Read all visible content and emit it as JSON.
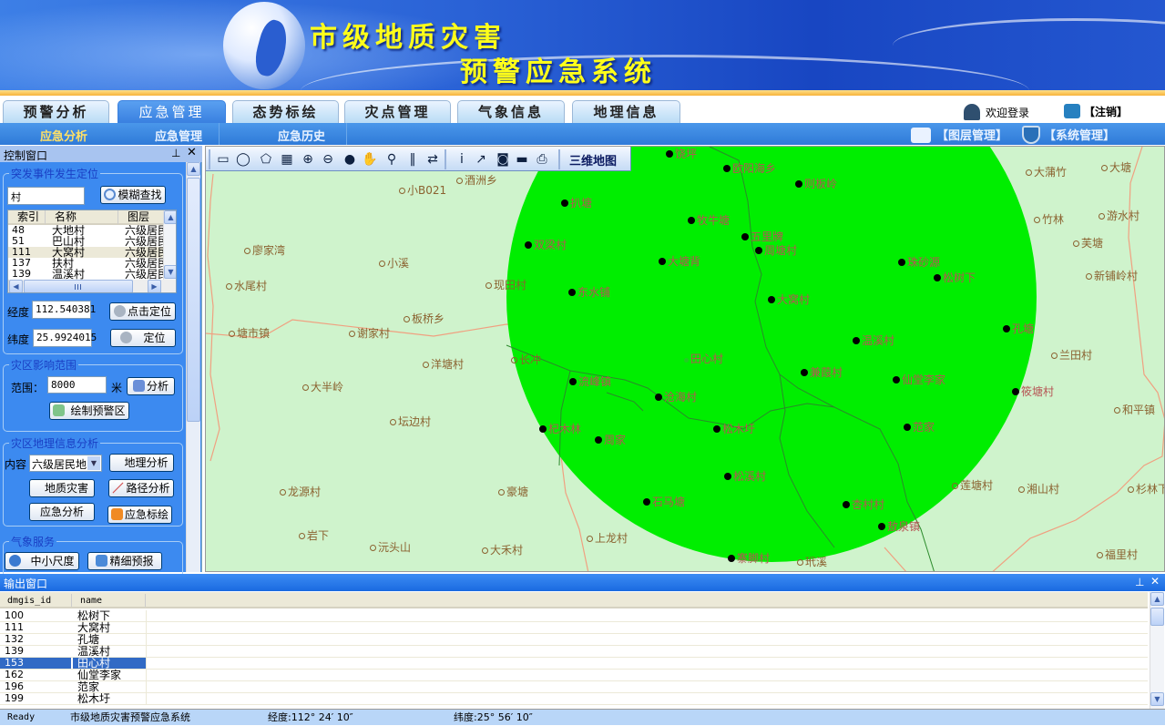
{
  "banner": {
    "title_line1": "市级地质灾害",
    "title_line2": "预警应急系统"
  },
  "tabs": [
    {
      "label": "预警分析",
      "active": false
    },
    {
      "label": "应急管理",
      "active": true
    },
    {
      "label": "态势标绘",
      "active": false
    },
    {
      "label": "灾点管理",
      "active": false
    },
    {
      "label": "气象信息",
      "active": false
    },
    {
      "label": "地理信息",
      "active": false
    }
  ],
  "subnav": [
    {
      "label": "应急分析",
      "active": true
    },
    {
      "label": "应急管理"
    },
    {
      "label": "应急历史"
    }
  ],
  "user": {
    "welcome": "欢迎登录",
    "logout": "【注销】",
    "layer_mgmt": "【图层管理】",
    "sys_mgmt": "【系统管理】"
  },
  "control": {
    "title": "控制窗口",
    "locate": {
      "legend": "突发事件发生定位",
      "search_value": "村",
      "search_btn": "模糊查找",
      "columns": [
        "索引",
        "名称",
        "图层"
      ],
      "rows": [
        [
          "48",
          "大地村",
          "六级居民地"
        ],
        [
          "51",
          "巴山村",
          "六级居民地"
        ],
        [
          "111",
          "大窝村",
          "六级居民地"
        ],
        [
          "137",
          "扶村",
          "六级居民地"
        ],
        [
          "139",
          "温溪村",
          "六级居民地"
        ]
      ],
      "selected_row": 2,
      "lon_label": "经度",
      "lon_value": "112.540381",
      "click_locate_btn": "点击定位",
      "lat_label": "纬度",
      "lat_value": "25.9924015",
      "locate_btn": "定位"
    },
    "impact": {
      "legend": "灾区影响范围",
      "range_label": "范围：",
      "range_value": "8000",
      "unit": "米",
      "analyze_btn": "分析",
      "draw_btn": "绘制预警区"
    },
    "geo": {
      "legend": "灾区地理信息分析",
      "content_label": "内容",
      "content_value": "六级居民地",
      "geo_btn": "地理分析",
      "hazard_btn": "地质灾害",
      "route_btn": "路径分析",
      "emergency_btn": "应急分析",
      "plot_btn": "应急标绘"
    },
    "weather": {
      "legend": "气象服务",
      "meso_btn": "中小尺度",
      "fine_btn": "精细预报"
    }
  },
  "map": {
    "toolbar_3d": "三维地图",
    "tools": [
      "ruler-icon",
      "measure-circle-icon",
      "measure-polygon-icon",
      "grid-icon",
      "zoom-in-icon",
      "zoom-out-icon",
      "globe-icon",
      "pan-hand-icon",
      "zoom-box-icon",
      "pause-icon",
      "swap-icon",
      "info-icon",
      "export-icon",
      "save-disk-icon",
      "scanner-icon",
      "print-icon"
    ],
    "buffer_color": "#00ee00",
    "inside": [
      "饶坪",
      "欧阳海乡",
      "则板岭",
      "扒塘",
      "牧牛塘",
      "五里牌",
      "周塘村",
      "双梁村",
      "大塘背",
      "东水铺",
      "大窝村",
      "温溪村",
      "田心村",
      "珠砂源",
      "松树下",
      "孔塘",
      "仙堂李家",
      "筱塘村",
      "范家",
      "兼葭村",
      "流峰镇",
      "沧海村",
      "松木圩",
      "杞木林",
      "周家",
      "松溪村",
      "石马塘",
      "杏村村",
      "敖泉镇",
      "寨脚村"
    ],
    "outside": [
      "酒洲乡",
      "小B021",
      "廖家湾",
      "小溪",
      "水尾村",
      "现田村",
      "板桥乡",
      "塘市镇",
      "谢家村",
      "长冲",
      "洋塘村",
      "大半岭",
      "坛边村",
      "龙源村",
      "豪塘",
      "岩下",
      "沅头山",
      "大禾村",
      "上龙村",
      "玳溪",
      "大蒲竹",
      "大塘",
      "竹林",
      "游水村",
      "芙塘",
      "新铺岭村",
      "兰田村",
      "和平镇",
      "莲塘村",
      "湘山村",
      "杉林下",
      "福里村"
    ]
  },
  "output": {
    "title": "输出窗口",
    "columns": [
      "dmgis_id",
      "name"
    ],
    "rows": [
      [
        "100",
        "松树下"
      ],
      [
        "111",
        "大窝村"
      ],
      [
        "132",
        "孔塘"
      ],
      [
        "139",
        "温溪村"
      ],
      [
        "153",
        "田心村"
      ],
      [
        "162",
        "仙堂李家"
      ],
      [
        "196",
        "范家"
      ],
      [
        "199",
        "松木圩"
      ]
    ],
    "selected_row": 4
  },
  "status": {
    "ready": "Ready",
    "app": "市级地质灾害预警应急系统",
    "lon": "经度:112° 24′ 10″",
    "lat": "纬度:25° 56′ 10″"
  }
}
